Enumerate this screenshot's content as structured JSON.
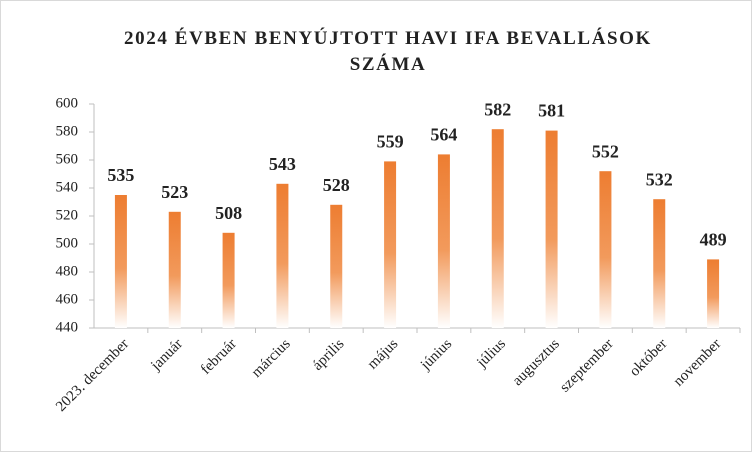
{
  "chart_data": {
    "type": "bar",
    "title": "2024 ÉVBEN BENYÚJTOTT HAVI IFA BEVALLÁSOK SZÁMA",
    "categories": [
      "2023. december",
      "január",
      "február",
      "március",
      "április",
      "május",
      "június",
      "július",
      "augusztus",
      "szeptember",
      "október",
      "november"
    ],
    "values": [
      535,
      523,
      508,
      543,
      528,
      559,
      564,
      582,
      581,
      552,
      532,
      489
    ],
    "color": "#ed7d31",
    "ylim": [
      440,
      600
    ],
    "yticks": [
      440,
      460,
      480,
      500,
      520,
      540,
      560,
      580,
      600
    ],
    "grid": false
  }
}
